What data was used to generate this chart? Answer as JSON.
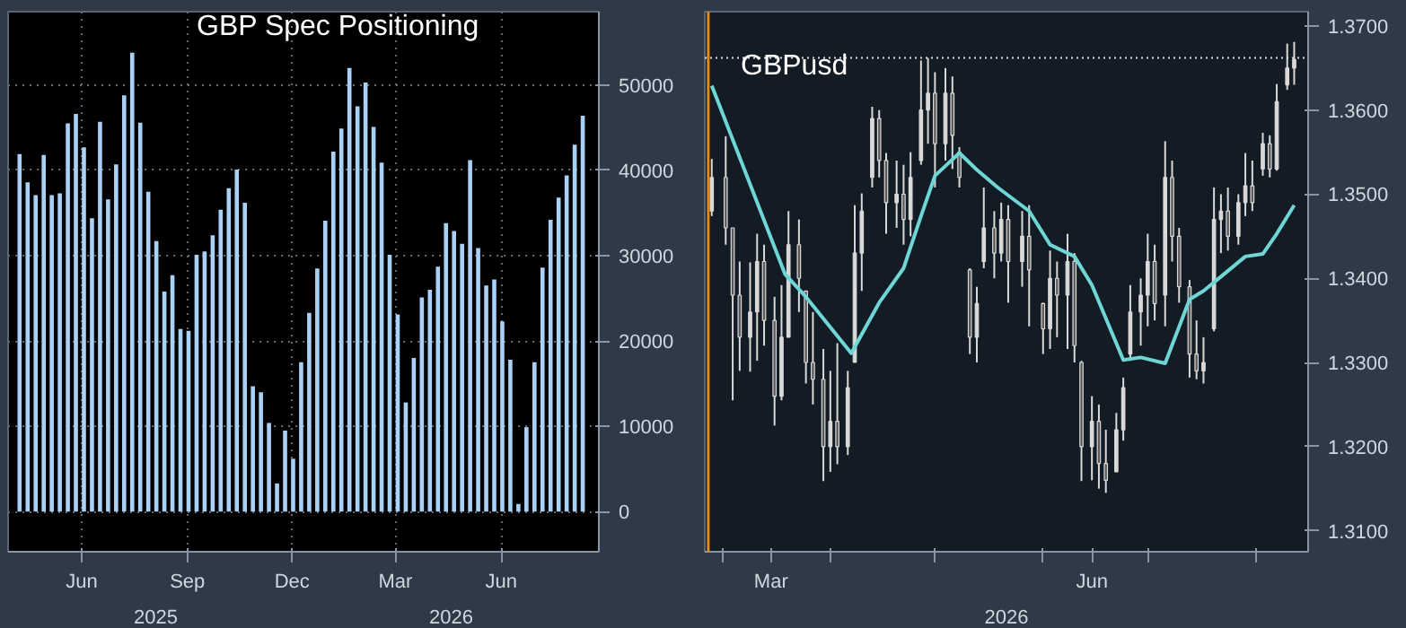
{
  "chart_data": [
    {
      "type": "bar",
      "title": "GBP Spec Positioning",
      "color": "#a9d0f5",
      "x": [
        "2025-04-22",
        "2025-04-29",
        "2025-05-06",
        "2025-05-13",
        "2025-05-20",
        "2025-05-27",
        "2025-06-03",
        "2025-06-10",
        "2025-06-17",
        "2025-06-24",
        "2025-07-01",
        "2025-07-08",
        "2025-07-15",
        "2025-07-22",
        "2025-07-29",
        "2025-08-05",
        "2025-08-12",
        "2025-08-19",
        "2025-08-26",
        "2025-09-02",
        "2025-09-09",
        "2025-09-16",
        "2025-09-23",
        "2025-09-30",
        "2025-10-07",
        "2025-10-14",
        "2025-10-21",
        "2025-10-28",
        "2025-11-04",
        "2025-11-11",
        "2025-11-18",
        "2025-11-25",
        "2025-12-02",
        "2025-12-09",
        "2025-12-16",
        "2025-12-23",
        "2025-12-30",
        "2026-01-06",
        "2026-01-13",
        "2026-01-20",
        "2026-01-27",
        "2026-02-03",
        "2026-02-10",
        "2026-02-17",
        "2026-02-24",
        "2026-03-03",
        "2026-03-10",
        "2026-03-17",
        "2026-03-24",
        "2026-03-31",
        "2026-04-07",
        "2026-04-14",
        "2026-04-21",
        "2026-04-28",
        "2026-05-05",
        "2026-05-12",
        "2026-05-19",
        "2026-05-26",
        "2026-06-02",
        "2026-06-09",
        "2026-06-16",
        "2026-06-23",
        "2026-06-30",
        "2026-07-07",
        "2026-07-14",
        "2026-07-21",
        "2026-07-28",
        "2026-08-04",
        "2026-08-11",
        "2026-08-18",
        "2026-08-25"
      ],
      "values": [
        41900,
        38600,
        37100,
        41800,
        37100,
        37300,
        45500,
        46600,
        42700,
        34400,
        45700,
        36600,
        40700,
        48800,
        53800,
        45600,
        37500,
        31700,
        25800,
        27700,
        21400,
        21200,
        30100,
        30500,
        32400,
        35400,
        37900,
        40100,
        36200,
        14700,
        14000,
        10400,
        3300,
        9500,
        6200,
        17500,
        23300,
        28500,
        34100,
        42200,
        44900,
        52000,
        47500,
        50300,
        45100,
        40900,
        30100,
        23100,
        12800,
        18000,
        25100,
        26000,
        28700,
        33800,
        32900,
        31400,
        41200,
        30900,
        26500,
        27200,
        22300,
        17800,
        900,
        9900,
        17500,
        28600,
        34200,
        36800,
        39400,
        43000,
        46400
      ],
      "xlim": [
        "2025-04-12",
        "2026-09-08"
      ],
      "ylim": [
        -4700,
        58600
      ],
      "xticks": [
        {
          "value": "2025-06-15",
          "label": "Jun"
        },
        {
          "value": "2025-09-15",
          "label": "Sep"
        },
        {
          "value": "2025-12-15",
          "label": "Dec"
        },
        {
          "value": "2026-03-15",
          "label": "Mar"
        },
        {
          "value": "2026-06-15",
          "label": "Jun"
        }
      ],
      "yticks": [
        0,
        10000,
        20000,
        30000,
        40000,
        50000
      ],
      "grid": true,
      "annotations": [
        "2025",
        "2026"
      ]
    },
    {
      "type": "candlestick",
      "title": "GBPusd",
      "color": "#d9d9d9",
      "x": [
        "2026-02-26",
        "2026-03-02",
        "2026-03-04",
        "2026-03-06",
        "2026-03-09",
        "2026-03-11",
        "2026-03-13",
        "2026-03-16",
        "2026-03-18",
        "2026-03-20",
        "2026-03-23",
        "2026-03-25",
        "2026-03-27",
        "2026-03-30",
        "2026-04-01",
        "2026-04-03",
        "2026-04-06",
        "2026-04-08",
        "2026-04-10",
        "2026-04-13",
        "2026-04-15",
        "2026-04-17",
        "2026-04-20",
        "2026-04-22",
        "2026-04-24",
        "2026-04-27",
        "2026-04-29",
        "2026-05-01",
        "2026-05-04",
        "2026-05-06",
        "2026-05-08",
        "2026-05-11",
        "2026-05-13",
        "2026-05-15",
        "2026-05-18",
        "2026-05-20",
        "2026-05-22",
        "2026-05-26",
        "2026-05-28",
        "2026-06-01",
        "2026-06-03",
        "2026-06-05",
        "2026-06-08",
        "2026-06-10",
        "2026-06-12",
        "2026-06-15",
        "2026-06-17",
        "2026-06-19",
        "2026-06-22",
        "2026-06-24",
        "2026-06-26",
        "2026-06-29",
        "2026-07-01",
        "2026-07-03",
        "2026-07-06",
        "2026-07-08",
        "2026-07-10",
        "2026-07-13",
        "2026-07-15",
        "2026-07-17",
        "2026-07-20",
        "2026-07-22",
        "2026-07-24",
        "2026-07-27",
        "2026-07-29",
        "2026-07-31",
        "2026-08-03",
        "2026-08-05",
        "2026-08-07",
        "2026-08-10",
        "2026-08-12"
      ],
      "ohlc": [
        [
          1.348,
          1.3542,
          1.3474,
          1.352
        ],
        [
          1.352,
          1.3569,
          1.344,
          1.346
        ],
        [
          1.346,
          1.346,
          1.3255,
          1.338
        ],
        [
          1.338,
          1.342,
          1.329,
          1.333
        ],
        [
          1.333,
          1.3419,
          1.3289,
          1.336
        ],
        [
          1.336,
          1.3453,
          1.3302,
          1.342
        ],
        [
          1.342,
          1.344,
          1.332,
          1.335
        ],
        [
          1.335,
          1.3378,
          1.3225,
          1.326
        ],
        [
          1.326,
          1.3392,
          1.3255,
          1.333
        ],
        [
          1.333,
          1.348,
          1.333,
          1.344
        ],
        [
          1.344,
          1.347,
          1.336,
          1.34
        ],
        [
          1.3385,
          1.3385,
          1.3275,
          1.33
        ],
        [
          1.33,
          1.336,
          1.325,
          1.328
        ],
        [
          1.328,
          1.3316,
          1.3159,
          1.32
        ],
        [
          1.32,
          1.329,
          1.317,
          1.323
        ],
        [
          1.323,
          1.3323,
          1.3179,
          1.32
        ],
        [
          1.32,
          1.329,
          1.319,
          1.327
        ],
        [
          1.33,
          1.3487,
          1.33,
          1.343
        ],
        [
          1.343,
          1.3501,
          1.3385,
          1.348
        ],
        [
          1.352,
          1.3604,
          1.3508,
          1.359
        ],
        [
          1.359,
          1.36,
          1.352,
          1.354
        ],
        [
          1.354,
          1.3549,
          1.3453,
          1.349
        ],
        [
          1.349,
          1.354,
          1.346,
          1.35
        ],
        [
          1.35,
          1.3535,
          1.344,
          1.347
        ],
        [
          1.347,
          1.355,
          1.345,
          1.352
        ],
        [
          1.354,
          1.3659,
          1.3535,
          1.36
        ],
        [
          1.36,
          1.3662,
          1.356,
          1.362
        ],
        [
          1.362,
          1.3645,
          1.3508,
          1.356
        ],
        [
          1.356,
          1.365,
          1.354,
          1.362
        ],
        [
          1.362,
          1.364,
          1.353,
          1.357
        ],
        [
          1.355,
          1.3556,
          1.3508,
          1.352
        ],
        [
          1.341,
          1.3412,
          1.331,
          1.333
        ],
        [
          1.333,
          1.339,
          1.33,
          1.337
        ],
        [
          1.342,
          1.3508,
          1.3412,
          1.346
        ],
        [
          1.346,
          1.348,
          1.34,
          1.343
        ],
        [
          1.343,
          1.349,
          1.342,
          1.347
        ],
        [
          1.347,
          1.3487,
          1.3371,
          1.342
        ],
        [
          1.342,
          1.348,
          1.339,
          1.345
        ],
        [
          1.345,
          1.3487,
          1.3343,
          1.341
        ],
        [
          1.337,
          1.3371,
          1.331,
          1.334
        ],
        [
          1.334,
          1.3433,
          1.3316,
          1.34
        ],
        [
          1.34,
          1.342,
          1.333,
          1.338
        ],
        [
          1.338,
          1.3453,
          1.3316,
          1.342
        ],
        [
          1.342,
          1.343,
          1.33,
          1.332
        ],
        [
          1.33,
          1.3302,
          1.3159,
          1.32
        ],
        [
          1.32,
          1.326,
          1.316,
          1.323
        ],
        [
          1.323,
          1.325,
          1.315,
          1.318
        ],
        [
          1.318,
          1.322,
          1.3145,
          1.316
        ],
        [
          1.317,
          1.324,
          1.317,
          1.322
        ],
        [
          1.322,
          1.3282,
          1.3207,
          1.327
        ],
        [
          1.331,
          1.3392,
          1.3302,
          1.336
        ],
        [
          1.336,
          1.34,
          1.332,
          1.338
        ],
        [
          1.338,
          1.3453,
          1.3343,
          1.342
        ],
        [
          1.342,
          1.344,
          1.335,
          1.337
        ],
        [
          1.338,
          1.3563,
          1.3343,
          1.352
        ],
        [
          1.352,
          1.354,
          1.342,
          1.345
        ],
        [
          1.345,
          1.346,
          1.3371,
          1.339
        ],
        [
          1.339,
          1.3398,
          1.3282,
          1.331
        ],
        [
          1.331,
          1.335,
          1.328,
          1.329
        ],
        [
          1.329,
          1.333,
          1.3275,
          1.33
        ],
        [
          1.334,
          1.3508,
          1.3337,
          1.347
        ],
        [
          1.347,
          1.35,
          1.343,
          1.348
        ],
        [
          1.348,
          1.3508,
          1.3433,
          1.345
        ],
        [
          1.345,
          1.35,
          1.344,
          1.349
        ],
        [
          1.349,
          1.3549,
          1.3474,
          1.351
        ],
        [
          1.351,
          1.354,
          1.348,
          1.349
        ],
        [
          1.353,
          1.3573,
          1.3522,
          1.356
        ],
        [
          1.356,
          1.357,
          1.352,
          1.353
        ],
        [
          1.353,
          1.3631,
          1.3528,
          1.361
        ],
        [
          1.363,
          1.3679,
          1.3624,
          1.365
        ],
        [
          1.365,
          1.3681,
          1.363,
          1.366
        ]
      ],
      "series": [
        {
          "type": "line",
          "color": "#6fd6d6",
          "x": [
            "2026-02-26",
            "2026-03-10",
            "2026-03-19",
            "2026-03-25",
            "2026-04-07",
            "2026-04-15",
            "2026-04-22",
            "2026-04-27",
            "2026-05-01",
            "2026-05-08",
            "2026-05-13",
            "2026-05-19",
            "2026-05-28",
            "2026-06-03",
            "2026-06-10",
            "2026-06-15",
            "2026-06-24",
            "2026-06-29",
            "2026-07-06",
            "2026-07-13",
            "2026-07-17",
            "2026-07-22",
            "2026-07-29",
            "2026-08-03",
            "2026-08-07",
            "2026-08-12"
          ],
          "values": [
            1.3629,
            1.3501,
            1.3405,
            1.3378,
            1.3311,
            1.3371,
            1.3412,
            1.3474,
            1.3522,
            1.3549,
            1.3529,
            1.3508,
            1.348,
            1.344,
            1.3426,
            1.3392,
            1.3303,
            1.3306,
            1.3299,
            1.3375,
            1.3385,
            1.3402,
            1.3426,
            1.3429,
            1.3453,
            1.3487
          ]
        }
      ],
      "xlim": [
        "2026-02-24",
        "2026-08-16"
      ],
      "ylim": [
        1.3075,
        1.3717
      ],
      "xticks": [
        {
          "value": "2026-03-01",
          "label": null
        },
        {
          "value": "2026-03-15",
          "label": "Mar"
        },
        {
          "value": "2026-04-01",
          "label": null
        },
        {
          "value": "2026-05-01",
          "label": null
        },
        {
          "value": "2026-06-01",
          "label": null
        },
        {
          "value": "2026-06-15",
          "label": "Jun"
        },
        {
          "value": "2026-07-01",
          "label": null
        },
        {
          "value": "2026-08-01",
          "label": null
        }
      ],
      "yticks": [
        {
          "value": 1.31,
          "label": "1.3100"
        },
        {
          "value": 1.32,
          "label": "1.3200"
        },
        {
          "value": 1.33,
          "label": "1.3300"
        },
        {
          "value": 1.34,
          "label": "1.3400"
        },
        {
          "value": 1.35,
          "label": "1.3500"
        },
        {
          "value": 1.36,
          "label": "1.3600"
        },
        {
          "value": 1.37,
          "label": "1.3700"
        }
      ],
      "ref_lines": [
        {
          "axis": "y",
          "value": 1.3662,
          "color": "#dddddd",
          "line_style": "dotted"
        },
        {
          "axis": "x",
          "value": "2026-02-25",
          "color": "#e08a1e",
          "line_style": "solid"
        }
      ],
      "annotations": [
        "2026"
      ]
    }
  ]
}
